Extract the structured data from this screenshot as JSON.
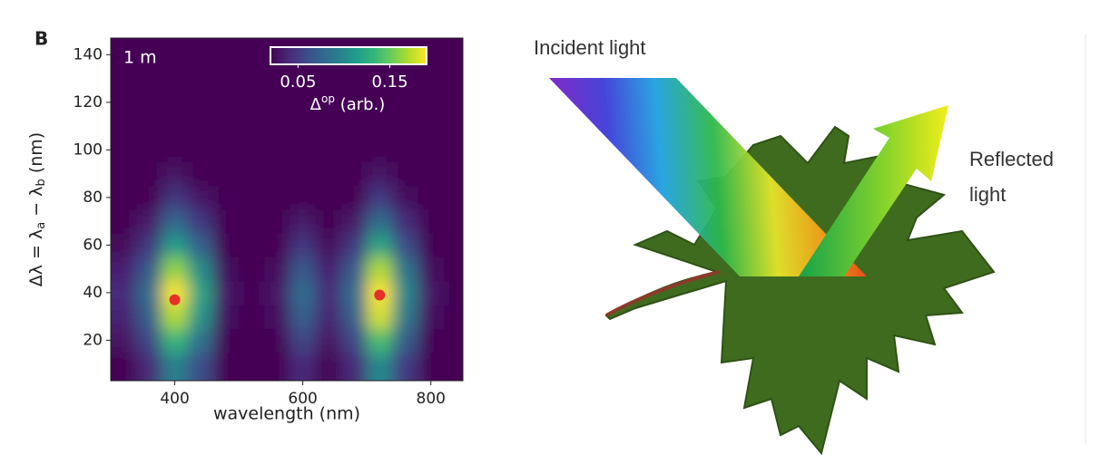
{
  "panel_label": "B",
  "chart_data": {
    "type": "heatmap",
    "annotation": "1 m",
    "x_label": "wavelength (nm)",
    "y_label": {
      "main": "Δλ = λ",
      "sub_a": "a",
      "mid": " − λ",
      "sub_b": "b",
      "end": " (nm)"
    },
    "xlim": [
      300,
      850
    ],
    "xticks": [
      400,
      600,
      800
    ],
    "ylim": [
      3,
      147
    ],
    "yticks": [
      20,
      40,
      60,
      80,
      100,
      120,
      140
    ],
    "x": [
      320,
      360,
      400,
      440,
      480,
      520,
      560,
      600,
      640,
      680,
      720,
      760,
      800,
      840
    ],
    "y": [
      10,
      20,
      30,
      40,
      50,
      60,
      70,
      80,
      90,
      100,
      110,
      120,
      130,
      140
    ],
    "z": [
      [
        0.02,
        0.04,
        0.095,
        0.06,
        0.015,
        0.01,
        0.015,
        0.04,
        0.02,
        0.04,
        0.1,
        0.05,
        0.015,
        0.01
      ],
      [
        0.028,
        0.056,
        0.133,
        0.084,
        0.021,
        0.014,
        0.021,
        0.056,
        0.028,
        0.056,
        0.14,
        0.07,
        0.021,
        0.014
      ],
      [
        0.036,
        0.072,
        0.171,
        0.108,
        0.027,
        0.018,
        0.027,
        0.072,
        0.036,
        0.072,
        0.18,
        0.09,
        0.027,
        0.018
      ],
      [
        0.04,
        0.08,
        0.19,
        0.12,
        0.03,
        0.02,
        0.03,
        0.08,
        0.04,
        0.08,
        0.2,
        0.1,
        0.03,
        0.02
      ],
      [
        0.034,
        0.068,
        0.162,
        0.102,
        0.026,
        0.017,
        0.026,
        0.068,
        0.034,
        0.068,
        0.17,
        0.085,
        0.026,
        0.017
      ],
      [
        0.024,
        0.048,
        0.114,
        0.072,
        0.018,
        0.012,
        0.018,
        0.048,
        0.024,
        0.048,
        0.12,
        0.06,
        0.018,
        0.012
      ],
      [
        0.016,
        0.032,
        0.076,
        0.048,
        0.012,
        0.008,
        0.012,
        0.032,
        0.016,
        0.032,
        0.08,
        0.04,
        0.012,
        0.008
      ],
      [
        0.01,
        0.02,
        0.048,
        0.03,
        0.008,
        0.005,
        0.008,
        0.02,
        0.01,
        0.02,
        0.05,
        0.025,
        0.008,
        0.005
      ],
      [
        0.006,
        0.012,
        0.029,
        0.018,
        0.005,
        0.003,
        0.005,
        0.012,
        0.006,
        0.012,
        0.03,
        0.015,
        0.005,
        0.003
      ],
      [
        0.003,
        0.006,
        0.015,
        0.01,
        0.002,
        0.002,
        0.002,
        0.006,
        0.003,
        0.006,
        0.016,
        0.008,
        0.002,
        0.002
      ],
      [
        0.002,
        0.003,
        0.008,
        0.005,
        0.001,
        0.001,
        0.001,
        0.003,
        0.002,
        0.003,
        0.008,
        0.004,
        0.001,
        0.001
      ],
      [
        0.001,
        0.001,
        0.002,
        0.001,
        0.001,
        0.001,
        0.001,
        0.001,
        0.001,
        0.001,
        0.002,
        0.001,
        0.001,
        0.001
      ],
      [
        0.001,
        0.001,
        0.002,
        0.001,
        0.001,
        0.001,
        0.001,
        0.001,
        0.001,
        0.001,
        0.002,
        0.001,
        0.001,
        0.001
      ],
      [
        0.001,
        0.001,
        0.002,
        0.001,
        0.001,
        0.001,
        0.001,
        0.001,
        0.001,
        0.001,
        0.002,
        0.001,
        0.001,
        0.001
      ]
    ],
    "colormap": "viridis",
    "clim": [
      0.02,
      0.19
    ],
    "colorbar": {
      "ticks": [
        0.05,
        0.15
      ],
      "label": {
        "main": "Δ",
        "sup": "op",
        "end": " (arb.)"
      }
    },
    "points": {
      "color": "#e8302a",
      "x": [
        400,
        720
      ],
      "y": [
        37,
        39
      ]
    }
  },
  "illustration": {
    "incident": "Incident light",
    "reflected": [
      "Reflected",
      "light"
    ]
  }
}
